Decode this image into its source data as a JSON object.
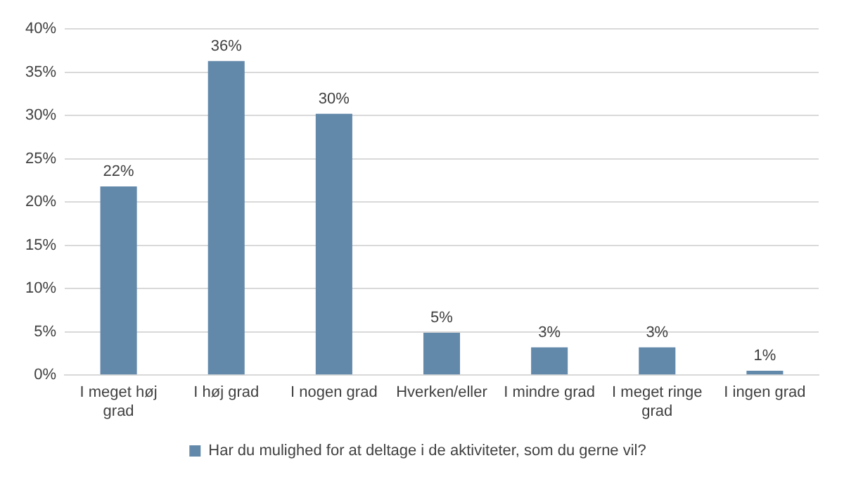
{
  "chart_data": {
    "type": "bar",
    "categories": [
      "I meget høj grad",
      "I høj grad",
      "I nogen grad",
      "Hverken/eller",
      "I mindre grad",
      "I meget ringe grad",
      "I ingen grad"
    ],
    "series": [
      {
        "name": "Har du mulighed for at deltage i de aktiviteter, som du gerne vil?",
        "color": "#6389aa",
        "values": [
          21.8,
          36.3,
          30.2,
          4.9,
          3.2,
          3.2,
          0.5
        ],
        "value_labels": [
          "22%",
          "36%",
          "30%",
          "5%",
          "3%",
          "3%",
          "1%"
        ]
      }
    ],
    "ylim": [
      0,
      40
    ],
    "yticks": [
      {
        "value": 0,
        "label": "0%"
      },
      {
        "value": 5,
        "label": "5%"
      },
      {
        "value": 10,
        "label": "10%"
      },
      {
        "value": 15,
        "label": "15%"
      },
      {
        "value": 20,
        "label": "20%"
      },
      {
        "value": 25,
        "label": "25%"
      },
      {
        "value": 30,
        "label": "30%"
      },
      {
        "value": 35,
        "label": "35%"
      },
      {
        "value": 40,
        "label": "40%"
      }
    ],
    "grid": "y",
    "legend": "bottom"
  }
}
